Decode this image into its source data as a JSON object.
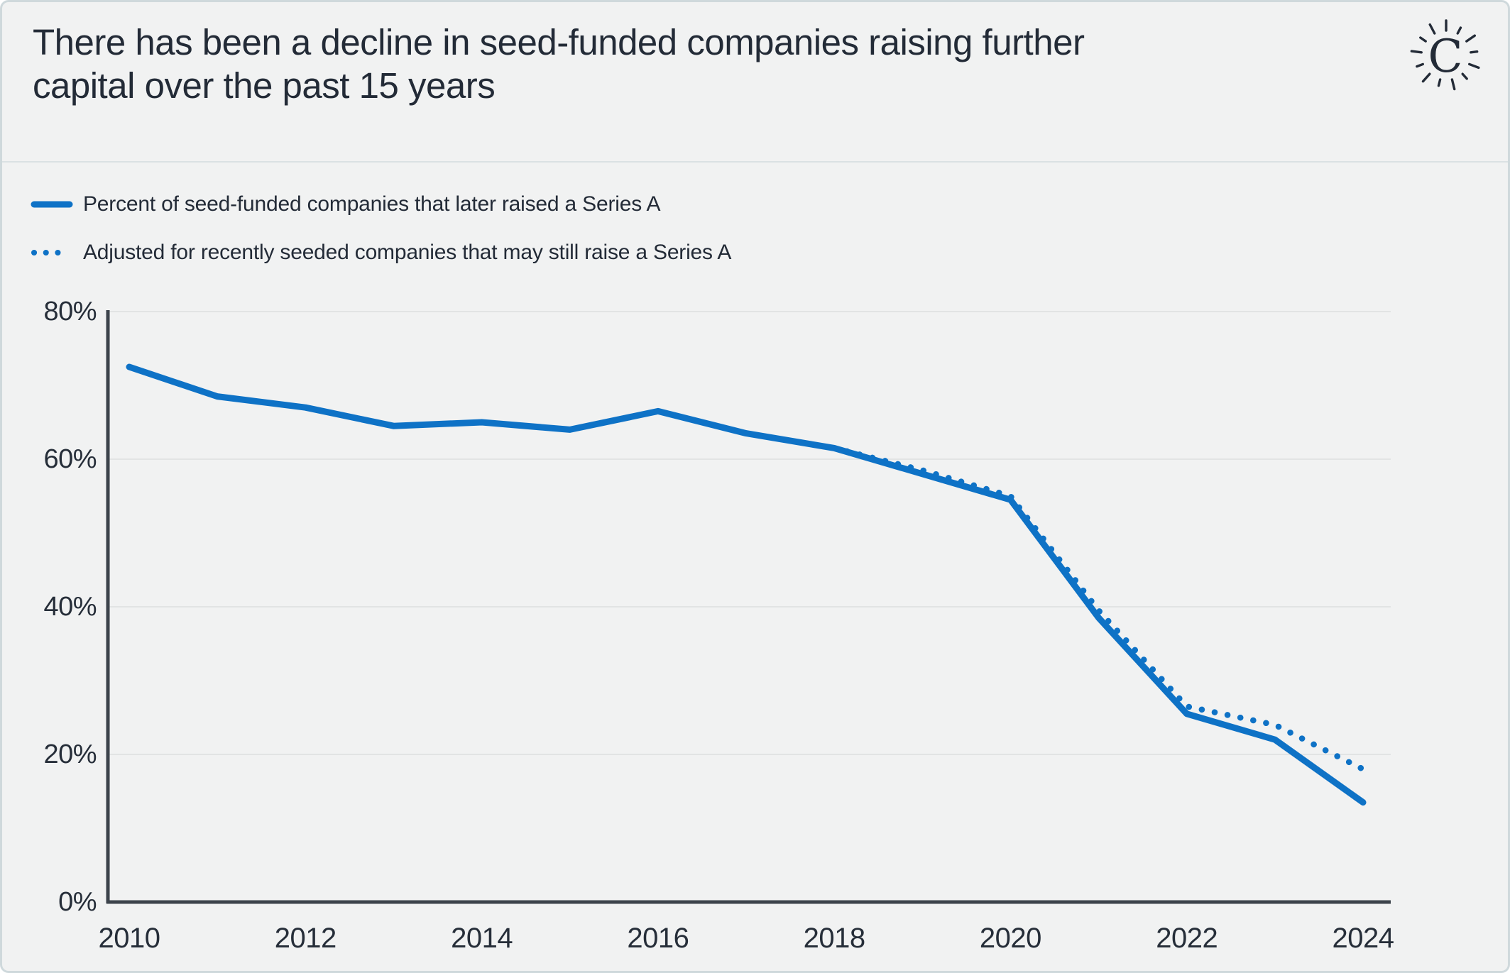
{
  "header": {
    "title_lines": [
      "There has been a decline in seed-funded companies raising further",
      "capital over the past 15 years"
    ],
    "logo_letter": "C"
  },
  "legend": [
    {
      "label": "Percent of seed-funded companies that later raised a Series A",
      "style": "solid"
    },
    {
      "label": "Adjusted for recently seeded companies that may still raise a Series A",
      "style": "dotted"
    }
  ],
  "colors": {
    "accent_blue": "#0e72c6",
    "ink": "#232b37",
    "tick_label": "#262e39",
    "grid": "#e2e4e4",
    "axis": "#3c434b",
    "background": "#f1f2f2",
    "divider": "#dbe1e3",
    "border": "#cfd9dc"
  },
  "chart_data": {
    "type": "line",
    "x": [
      2010,
      2011,
      2012,
      2013,
      2014,
      2015,
      2016,
      2017,
      2018,
      2019,
      2020,
      2021,
      2022,
      2023,
      2024
    ],
    "series": [
      {
        "name": "Percent of seed-funded companies that later raised a Series A",
        "style": "solid",
        "values": [
          72.5,
          68.5,
          67,
          64.5,
          65,
          64,
          66.5,
          63.5,
          61.5,
          58,
          54.5,
          38.5,
          25.5,
          22,
          13.5
        ]
      },
      {
        "name": "Adjusted for recently seeded companies that may still raise a Series A",
        "style": "dotted",
        "values": [
          null,
          null,
          null,
          null,
          null,
          null,
          null,
          null,
          61.5,
          58.5,
          55,
          39.5,
          26.5,
          24,
          18
        ]
      }
    ],
    "title": "There has been a decline in seed-funded companies raising further capital over the past 15 years",
    "xlabel": "",
    "ylabel": "",
    "ylim": [
      0,
      80
    ],
    "xlim": [
      2010,
      2024
    ],
    "grid": true,
    "legend_position": "top-left",
    "y_ticks": [
      {
        "value": 0,
        "label": "0%"
      },
      {
        "value": 20,
        "label": "20%"
      },
      {
        "value": 40,
        "label": "40%"
      },
      {
        "value": 60,
        "label": "60%"
      },
      {
        "value": 80,
        "label": "80%"
      }
    ],
    "x_ticks": [
      {
        "value": 2010,
        "label": "2010"
      },
      {
        "value": 2012,
        "label": "2012"
      },
      {
        "value": 2014,
        "label": "2014"
      },
      {
        "value": 2016,
        "label": "2016"
      },
      {
        "value": 2018,
        "label": "2018"
      },
      {
        "value": 2020,
        "label": "2020"
      },
      {
        "value": 2022,
        "label": "2022"
      },
      {
        "value": 2024,
        "label": "2024"
      }
    ]
  }
}
